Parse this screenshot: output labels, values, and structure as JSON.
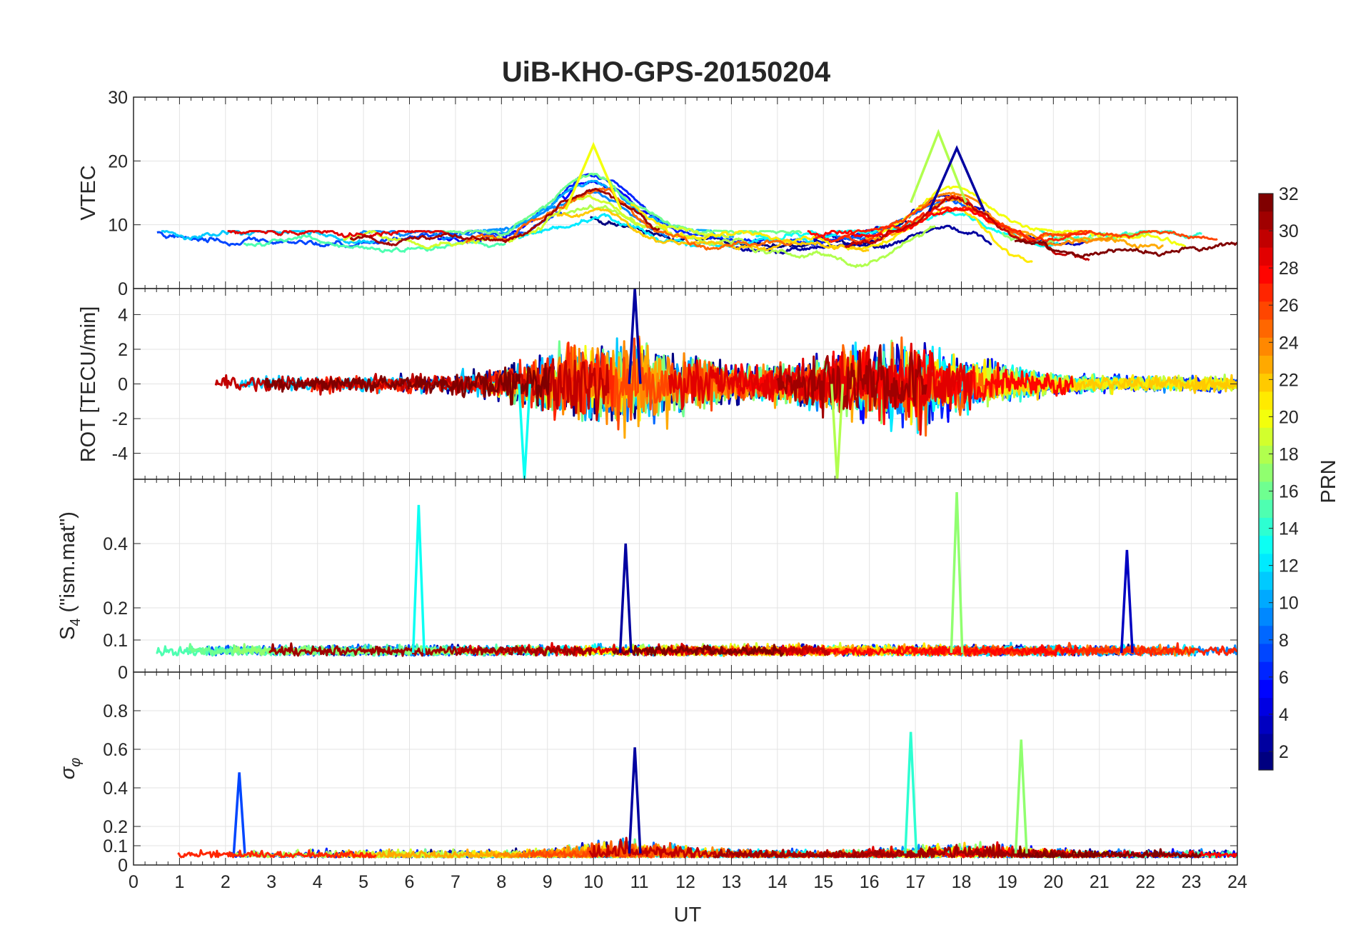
{
  "figure": {
    "title": "UiB-KHO-GPS-20150204",
    "xlabel": "UT",
    "colorbar_label": "PRN",
    "colormap": "jet",
    "colorbar_ticks": [
      2,
      4,
      6,
      8,
      10,
      12,
      14,
      16,
      18,
      20,
      22,
      24,
      26,
      28,
      30,
      32
    ],
    "colorbar_range": [
      1,
      32
    ]
  },
  "chart_data": [
    {
      "type": "line",
      "panel": "VTEC",
      "ylabel": "VTEC",
      "xlim": [
        0,
        24
      ],
      "ylim": [
        0,
        30
      ],
      "yticks": [
        0,
        10,
        20,
        30
      ],
      "grid": true,
      "peaks": [
        {
          "prn": 20,
          "x": 10.0,
          "y": 22.5
        },
        {
          "prn": 18,
          "x": 17.5,
          "y": 24.5
        },
        {
          "prn": 2,
          "x": 17.9,
          "y": 22.0
        }
      ]
    },
    {
      "type": "line",
      "panel": "ROT",
      "ylabel": "ROT [TECU/min]",
      "xlim": [
        0,
        24
      ],
      "ylim": [
        -5.5,
        5.5
      ],
      "yticks": [
        -4,
        -2,
        0,
        2,
        4
      ],
      "grid": true,
      "peaks": [
        {
          "prn": 2,
          "x": 10.9,
          "y": 5.5
        },
        {
          "prn": 13,
          "x": 8.5,
          "y": -5.5
        },
        {
          "prn": 18,
          "x": 15.3,
          "y": -5.5
        }
      ]
    },
    {
      "type": "line",
      "panel": "S4",
      "ylabel": "S4 (\"ism.mat\")",
      "ylabel_main": "S",
      "ylabel_sub": "4",
      "ylabel_rest": " (\"ism.mat\")",
      "xlim": [
        0,
        24
      ],
      "ylim": [
        0,
        0.6
      ],
      "yticks": [
        0,
        0.1,
        0.2,
        0.4
      ],
      "grid": true,
      "peaks": [
        {
          "prn": 13,
          "x": 6.2,
          "y": 0.52
        },
        {
          "prn": 2,
          "x": 10.7,
          "y": 0.4
        },
        {
          "prn": 17,
          "x": 17.9,
          "y": 0.56
        },
        {
          "prn": 3,
          "x": 21.6,
          "y": 0.38
        }
      ]
    },
    {
      "type": "line",
      "panel": "sigma_phi",
      "ylabel": "σφ",
      "ylabel_main": "σ",
      "ylabel_sub": "φ",
      "xlim": [
        0,
        24
      ],
      "ylim": [
        0,
        1
      ],
      "yticks": [
        0,
        0.1,
        0.2,
        0.4,
        0.6,
        0.8
      ],
      "xticks": [
        0,
        1,
        2,
        3,
        4,
        5,
        6,
        7,
        8,
        9,
        10,
        11,
        12,
        13,
        14,
        15,
        16,
        17,
        18,
        19,
        20,
        21,
        22,
        23,
        24
      ],
      "grid": true,
      "peaks": [
        {
          "prn": 7,
          "x": 2.3,
          "y": 0.48
        },
        {
          "prn": 2,
          "x": 10.9,
          "y": 0.61
        },
        {
          "prn": 14,
          "x": 16.9,
          "y": 0.69
        },
        {
          "prn": 17,
          "x": 19.3,
          "y": 0.65
        }
      ]
    }
  ]
}
